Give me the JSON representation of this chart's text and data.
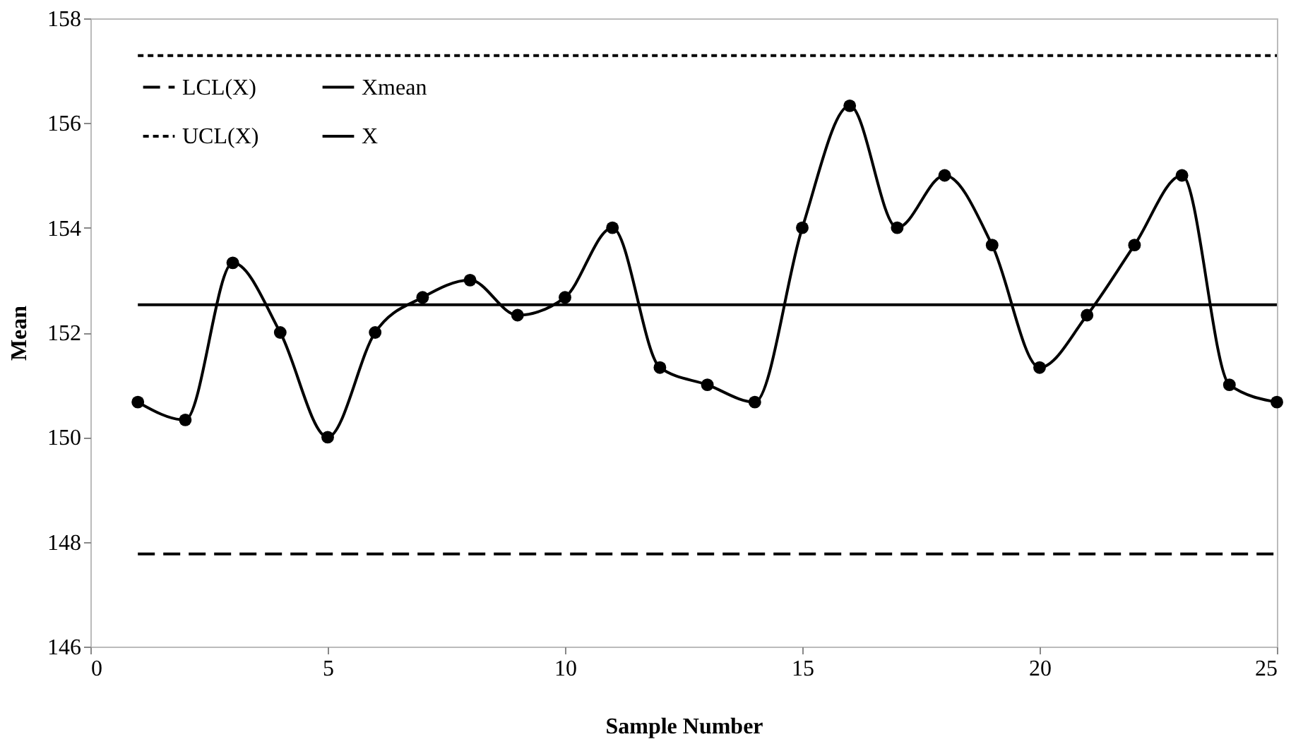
{
  "chart_data": {
    "type": "line",
    "xlabel": "Sample Number",
    "ylabel": "Mean",
    "xlim": [
      0,
      25
    ],
    "xticks": [
      0,
      5,
      10,
      15,
      20,
      25
    ],
    "ylim": [
      146,
      158
    ],
    "yticks": [
      146,
      148,
      150,
      152,
      154,
      156,
      158
    ],
    "grid": false,
    "legend": "top left",
    "series": [
      {
        "name": "LCL(X)",
        "color": "#000000",
        "line_style": "dashed",
        "marker": "none",
        "x": [
          1,
          25
        ],
        "values": [
          147.77,
          147.77
        ]
      },
      {
        "name": "Xmean",
        "color": "#000000",
        "line_style": "solid",
        "marker": "none",
        "x": [
          1,
          25
        ],
        "values": [
          152.53,
          152.53
        ]
      },
      {
        "name": "UCL(X)",
        "color": "#000000",
        "line_style": "dotted",
        "marker": "none",
        "x": [
          1,
          25
        ],
        "values": [
          157.29,
          157.29
        ]
      },
      {
        "name": "X",
        "color": "#000000",
        "line_style": "solid",
        "marker": "circle",
        "x": [
          1,
          2,
          3,
          4,
          5,
          6,
          7,
          8,
          9,
          10,
          11,
          12,
          13,
          14,
          15,
          16,
          17,
          18,
          19,
          20,
          21,
          22,
          23,
          24,
          25
        ],
        "values": [
          150.67,
          150.33,
          153.33,
          152,
          150,
          152,
          152.67,
          153,
          152.33,
          152.67,
          154,
          151.33,
          151,
          150.67,
          154,
          156.33,
          154,
          155,
          153.67,
          151.33,
          152.33,
          153.67,
          155,
          151,
          150.67
        ]
      }
    ]
  }
}
